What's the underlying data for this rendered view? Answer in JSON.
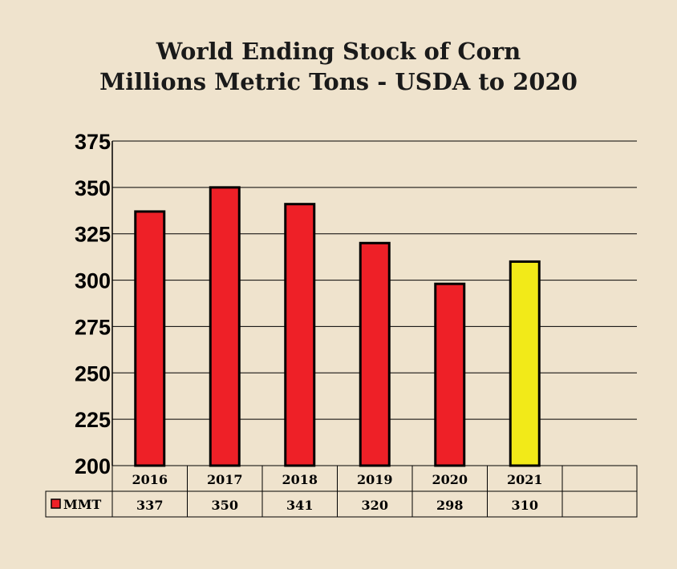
{
  "chart_data": {
    "type": "bar",
    "title": "World Ending Stock of Corn",
    "subtitle": "Millions Metric Tons - USDA to 2020",
    "categories": [
      "2016",
      "2017",
      "2018",
      "2019",
      "2020",
      "2021"
    ],
    "series": [
      {
        "name": "MMT",
        "values": [
          337,
          350,
          341,
          320,
          298,
          310
        ]
      }
    ],
    "ylim": [
      200,
      375
    ],
    "yticks": [
      375,
      350,
      325,
      300,
      275,
      250,
      225,
      200
    ],
    "grid": true,
    "data_table": true,
    "colors": {
      "bar": "#ee2027",
      "highlight_bar": "#f2ea18",
      "background": "#efe3cd"
    },
    "highlight_category": "2021"
  }
}
